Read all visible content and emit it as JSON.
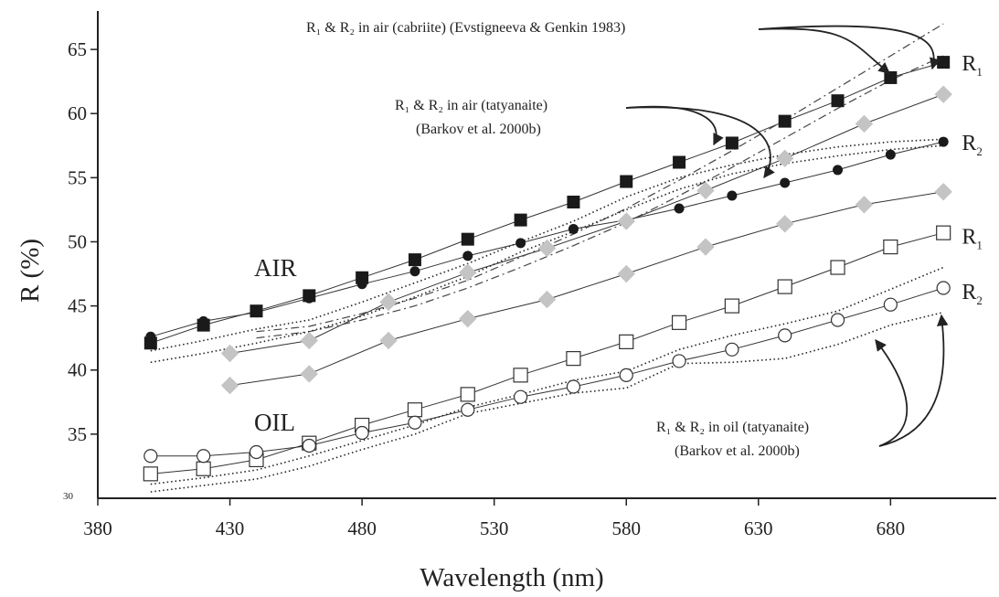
{
  "chart_data": {
    "type": "line",
    "xlabel": "Wavelength (nm)",
    "ylabel": "R (%)",
    "xlim": [
      380,
      720
    ],
    "ylim": [
      30,
      68
    ],
    "xticks": [
      380,
      430,
      480,
      530,
      580,
      630,
      680
    ],
    "yticks": [
      35,
      40,
      45,
      50,
      55,
      60,
      65
    ],
    "ymin_label": "30",
    "grid": false,
    "medium_labels": {
      "air": "AIR",
      "oil": "OIL"
    },
    "curve_labels": [
      {
        "text": "R",
        "sub": "1",
        "x": 707,
        "y": 64.0
      },
      {
        "text": "R",
        "sub": "2",
        "x": 707,
        "y": 57.8
      },
      {
        "text": "R",
        "sub": "1",
        "x": 707,
        "y": 50.5
      },
      {
        "text": "R",
        "sub": "2",
        "x": 707,
        "y": 46.2
      }
    ],
    "annotations": [
      {
        "id": "cabriite",
        "line1": "R₁ & R₂ in air (cabriite) (Evstigneeva & Genkin 1983)",
        "line2": ""
      },
      {
        "id": "tatyanaite-air",
        "line1": "R₁ & R₂ in air (tatyanaite)",
        "line2": "(Barkov et al. 2000b)"
      },
      {
        "id": "tatyanaite-oil",
        "line1": "R₁ & R₂ in oil (tatyanaite)",
        "line2": "(Barkov et al. 2000b)"
      }
    ],
    "series": [
      {
        "name": "R1 air",
        "marker": "square-filled",
        "x": [
          400,
          420,
          440,
          460,
          480,
          500,
          520,
          540,
          560,
          580,
          600,
          620,
          640,
          660,
          680,
          700
        ],
        "y": [
          42.1,
          43.5,
          44.6,
          45.8,
          47.2,
          48.6,
          50.2,
          51.7,
          53.1,
          54.7,
          56.2,
          57.7,
          59.4,
          61.0,
          62.8,
          64.0
        ]
      },
      {
        "name": "R2 air",
        "marker": "circle-filled",
        "x": [
          400,
          420,
          440,
          460,
          480,
          500,
          520,
          540,
          560,
          580,
          600,
          620,
          640,
          660,
          680,
          700
        ],
        "y": [
          42.6,
          43.8,
          44.5,
          45.6,
          46.7,
          47.7,
          48.9,
          49.9,
          51.0,
          51.7,
          52.6,
          53.6,
          54.6,
          55.6,
          56.8,
          57.8
        ]
      },
      {
        "name": "R1 air (grey diamonds)",
        "marker": "diamond-grey",
        "x": [
          430,
          460,
          490,
          520,
          550,
          580,
          610,
          640,
          670,
          700
        ],
        "y": [
          41.3,
          42.3,
          45.3,
          47.6,
          49.5,
          51.6,
          54.0,
          56.5,
          59.2,
          61.5
        ]
      },
      {
        "name": "R2 air (grey diamonds)",
        "marker": "diamond-grey",
        "x": [
          430,
          460,
          490,
          520,
          550,
          580,
          610,
          640,
          670,
          700
        ],
        "y": [
          38.8,
          39.7,
          42.3,
          44.0,
          45.5,
          47.5,
          49.6,
          51.4,
          52.9,
          53.9
        ]
      },
      {
        "name": "R1 oil",
        "marker": "square-open",
        "x": [
          400,
          420,
          440,
          460,
          480,
          500,
          520,
          540,
          560,
          580,
          600,
          620,
          640,
          660,
          680,
          700
        ],
        "y": [
          31.9,
          32.3,
          33.0,
          34.3,
          35.7,
          36.9,
          38.1,
          39.6,
          40.9,
          42.2,
          43.7,
          45.0,
          46.5,
          48.0,
          49.6,
          50.7
        ]
      },
      {
        "name": "R2 oil",
        "marker": "circle-open",
        "x": [
          400,
          420,
          440,
          460,
          480,
          500,
          520,
          540,
          560,
          580,
          600,
          620,
          640,
          660,
          680,
          700
        ],
        "y": [
          33.3,
          33.3,
          33.6,
          34.1,
          35.1,
          35.9,
          36.9,
          37.9,
          38.7,
          39.6,
          40.7,
          41.6,
          42.7,
          43.9,
          45.1,
          46.4
        ]
      },
      {
        "name": "R1 air cabriite",
        "style": "dashdot",
        "x": [
          440,
          460,
          480,
          500,
          520,
          540,
          560,
          580,
          600,
          620,
          640,
          660,
          680,
          700
        ],
        "y": [
          43.0,
          43.4,
          44.4,
          45.6,
          47.0,
          48.8,
          50.6,
          52.6,
          54.8,
          57.1,
          59.5,
          62.0,
          64.5,
          67.0
        ]
      },
      {
        "name": "R2 air cabriite",
        "style": "dashdot",
        "x": [
          440,
          460,
          480,
          500,
          520,
          540,
          560,
          580,
          600,
          620,
          640,
          660,
          680,
          700
        ],
        "y": [
          42.5,
          43.0,
          43.9,
          45.0,
          46.4,
          48.0,
          49.7,
          51.5,
          53.6,
          55.8,
          58.1,
          60.4,
          62.6,
          64.5
        ]
      },
      {
        "name": "R1 air tatyanaite",
        "style": "dotted",
        "x": [
          400,
          420,
          440,
          460,
          480,
          500,
          520,
          540,
          560,
          580,
          600,
          620,
          640,
          660,
          680,
          700
        ],
        "y": [
          41.5,
          42.3,
          43.2,
          43.9,
          45.3,
          46.8,
          48.3,
          50.0,
          51.6,
          53.5,
          55.0,
          56.0,
          56.8,
          57.4,
          57.8,
          58.0
        ]
      },
      {
        "name": "R2 air tatyanaite",
        "style": "dotted",
        "x": [
          400,
          420,
          440,
          460,
          480,
          500,
          520,
          540,
          560,
          580,
          600,
          620,
          640,
          660,
          680,
          700
        ],
        "y": [
          40.6,
          41.3,
          42.1,
          43.0,
          44.2,
          45.7,
          47.3,
          49.2,
          50.8,
          52.5,
          54.1,
          55.3,
          56.1,
          56.7,
          57.2,
          57.5
        ]
      },
      {
        "name": "R1 oil tatyanaite",
        "style": "dotted",
        "x": [
          400,
          420,
          440,
          460,
          480,
          500,
          520,
          540,
          560,
          580,
          600,
          620,
          640,
          660,
          680,
          700
        ],
        "y": [
          31.1,
          31.6,
          32.2,
          33.3,
          34.5,
          35.7,
          37.1,
          38.1,
          39.2,
          39.9,
          41.6,
          42.7,
          43.6,
          44.6,
          46.3,
          48.0
        ]
      },
      {
        "name": "R2 oil tatyanaite",
        "style": "dotted",
        "x": [
          400,
          420,
          440,
          460,
          480,
          500,
          520,
          540,
          560,
          580,
          600,
          620,
          640,
          660,
          680,
          700
        ],
        "y": [
          30.5,
          31.0,
          31.5,
          32.5,
          33.8,
          35.0,
          36.6,
          37.4,
          38.2,
          38.6,
          40.5,
          40.6,
          40.9,
          42.0,
          43.5,
          44.5
        ]
      }
    ]
  }
}
